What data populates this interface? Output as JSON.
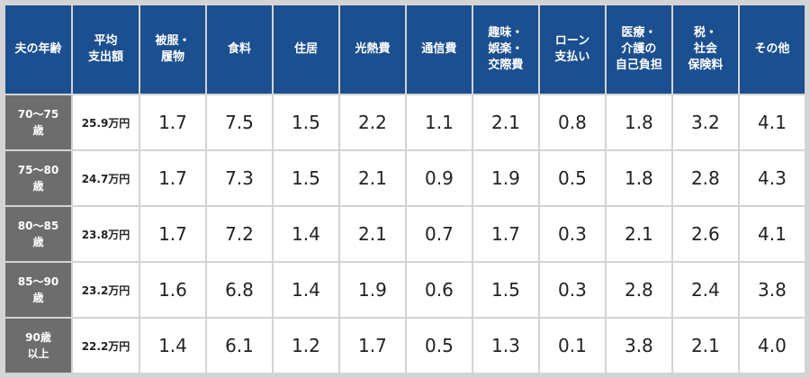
{
  "headers": [
    "夫の年齢",
    "平均\n支出額",
    "被服・\n履物",
    "食料",
    "住居",
    "光熱費",
    "通信費",
    "趣味・\n娯楽・\n交際費",
    "ローン\n支払い",
    "医療・\n介護の\n自己負担",
    "税・\n社会\n保険料",
    "その他"
  ],
  "rows": [
    {
      "age": "70〜75\n歳",
      "avg": "25.9万円",
      "values": [
        "1.7",
        "7.5",
        "1.5",
        "2.2",
        "1.1",
        "2.1",
        "0.8",
        "1.8",
        "3.2",
        "4.1"
      ]
    },
    {
      "age": "75〜80\n歳",
      "avg": "24.7万円",
      "values": [
        "1.7",
        "7.3",
        "1.5",
        "2.1",
        "0.9",
        "1.9",
        "0.5",
        "1.8",
        "2.8",
        "4.3"
      ]
    },
    {
      "age": "80〜85\n歳",
      "avg": "23.8万円",
      "values": [
        "1.7",
        "7.2",
        "1.4",
        "2.1",
        "0.7",
        "1.7",
        "0.3",
        "2.1",
        "2.6",
        "4.1"
      ]
    },
    {
      "age": "85〜90\n歳",
      "avg": "23.2万円",
      "values": [
        "1.6",
        "6.8",
        "1.4",
        "1.9",
        "0.6",
        "1.5",
        "0.3",
        "2.8",
        "2.4",
        "3.8"
      ]
    },
    {
      "age": "90歳\n以上",
      "avg": "22.2万円",
      "values": [
        "1.4",
        "6.1",
        "1.2",
        "1.7",
        "0.5",
        "1.3",
        "0.1",
        "3.8",
        "2.1",
        "4.0"
      ]
    }
  ],
  "colors": {
    "header_bg": "#1b4f8f",
    "age_bg": "#6d6d6d",
    "border": "#d4d4d4"
  }
}
